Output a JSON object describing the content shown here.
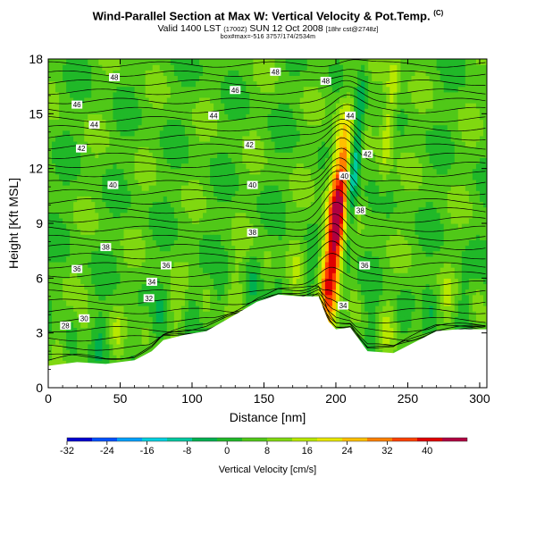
{
  "title": {
    "main": "Wind-Parallel Section at Max W: Vertical Velocity & Pot.Temp.",
    "copyright": "(C)",
    "valid_prefix": "Valid 1400 LST",
    "valid_z": "(1700Z)",
    "valid_date": "SUN 12 Oct 2008",
    "valid_suffix": "[18hr cst@2748z]",
    "box_line": "box#max=-516 3757/174/2534m"
  },
  "chart_data": {
    "type": "heatmap",
    "title": "Wind-Parallel Section at Max W: Vertical Velocity & Pot.Temp.",
    "xlabel": "Distance [nm]",
    "ylabel": "Height [Kft MSL]",
    "xlim": [
      0,
      305
    ],
    "ylim": [
      0,
      18
    ],
    "x_ticks": [
      "0",
      "50",
      "100",
      "150",
      "200",
      "250",
      "300"
    ],
    "y_ticks": [
      "0",
      "3",
      "6",
      "9",
      "12",
      "15",
      "18"
    ],
    "colorbar": {
      "label": "Vertical Velocity [cm/s]",
      "range": [
        -32,
        48
      ],
      "ticks": [
        "-32",
        "-24",
        "-16",
        "-8",
        "0",
        "8",
        "16",
        "24",
        "32",
        "40"
      ],
      "colors": [
        "#0000d0",
        "#0050ff",
        "#00a0ff",
        "#00d0e0",
        "#00c8a0",
        "#00b050",
        "#20b828",
        "#50c818",
        "#80d810",
        "#b8e800",
        "#e8e800",
        "#ffc000",
        "#ff8000",
        "#ff4000",
        "#e00000",
        "#b00040"
      ]
    },
    "terrain": [
      [
        0,
        1.2
      ],
      [
        20,
        1.4
      ],
      [
        40,
        1.3
      ],
      [
        60,
        1.5
      ],
      [
        72,
        2.0
      ],
      [
        80,
        2.6
      ],
      [
        95,
        2.9
      ],
      [
        110,
        3.1
      ],
      [
        130,
        4.0
      ],
      [
        145,
        4.7
      ],
      [
        160,
        5.1
      ],
      [
        175,
        5.0
      ],
      [
        188,
        5.0
      ],
      [
        195,
        3.6
      ],
      [
        200,
        3.2
      ],
      [
        210,
        3.3
      ],
      [
        222,
        2.0
      ],
      [
        240,
        1.9
      ],
      [
        255,
        2.5
      ],
      [
        270,
        3.1
      ],
      [
        285,
        3.2
      ],
      [
        305,
        3.2
      ]
    ],
    "updraft_center_x": 200,
    "contour_labels": [
      {
        "x": 46,
        "y": 17.0,
        "label": "48"
      },
      {
        "x": 20,
        "y": 15.5,
        "label": "46"
      },
      {
        "x": 32,
        "y": 14.4,
        "label": "44"
      },
      {
        "x": 23,
        "y": 13.1,
        "label": "42"
      },
      {
        "x": 45,
        "y": 11.1,
        "label": "40"
      },
      {
        "x": 40,
        "y": 7.7,
        "label": "38"
      },
      {
        "x": 20,
        "y": 6.5,
        "label": "36"
      },
      {
        "x": 25,
        "y": 3.8,
        "label": "30"
      },
      {
        "x": 12,
        "y": 3.4,
        "label": "28"
      },
      {
        "x": 82,
        "y": 6.7,
        "label": "36"
      },
      {
        "x": 72,
        "y": 5.8,
        "label": "34"
      },
      {
        "x": 70,
        "y": 4.9,
        "label": "32"
      },
      {
        "x": 142,
        "y": 8.5,
        "label": "38"
      },
      {
        "x": 142,
        "y": 11.1,
        "label": "40"
      },
      {
        "x": 158,
        "y": 17.3,
        "label": "48"
      },
      {
        "x": 130,
        "y": 16.3,
        "label": "46"
      },
      {
        "x": 115,
        "y": 14.9,
        "label": "44"
      },
      {
        "x": 140,
        "y": 13.3,
        "label": "42"
      },
      {
        "x": 193,
        "y": 16.8,
        "label": "48"
      },
      {
        "x": 210,
        "y": 14.9,
        "label": "44"
      },
      {
        "x": 222,
        "y": 12.8,
        "label": "42"
      },
      {
        "x": 206,
        "y": 11.6,
        "label": "40"
      },
      {
        "x": 217,
        "y": 9.7,
        "label": "38"
      },
      {
        "x": 220,
        "y": 6.7,
        "label": "36"
      },
      {
        "x": 205,
        "y": 4.5,
        "label": "34"
      }
    ]
  }
}
